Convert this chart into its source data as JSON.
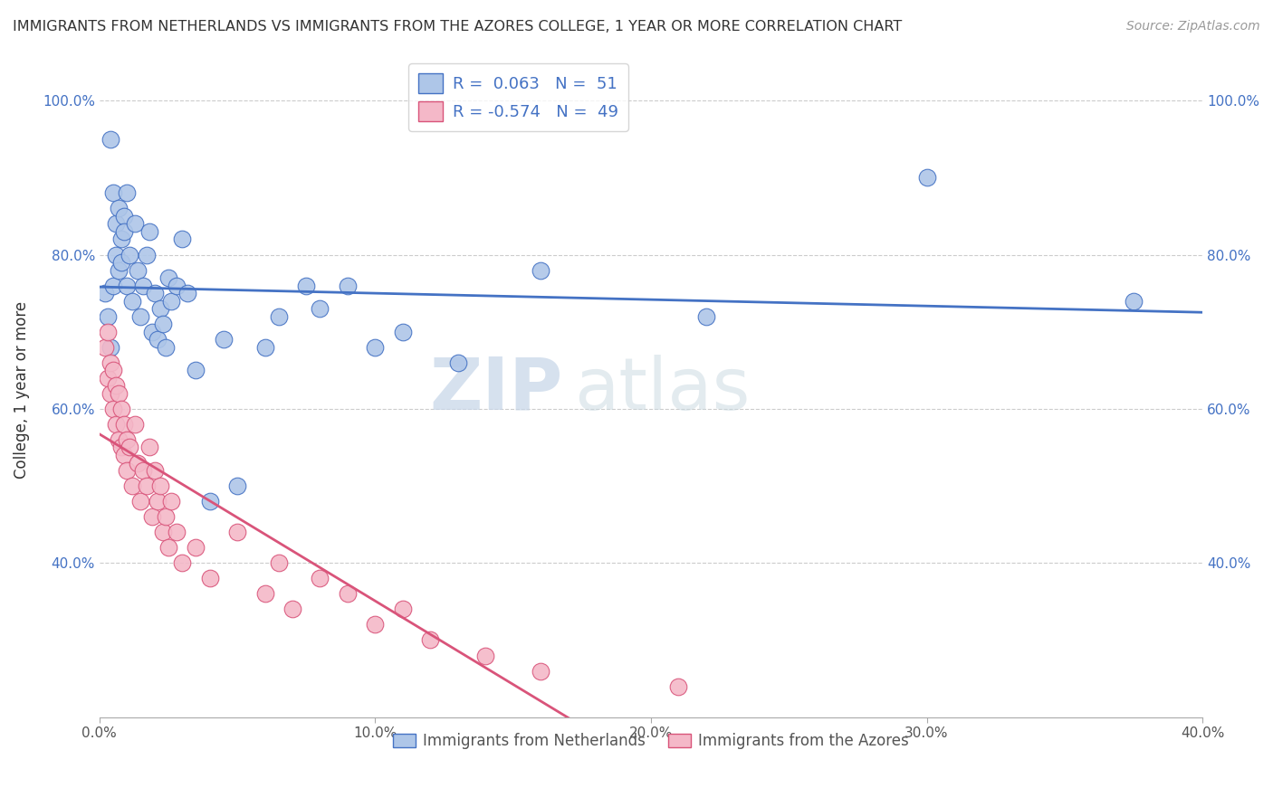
{
  "title": "IMMIGRANTS FROM NETHERLANDS VS IMMIGRANTS FROM THE AZORES COLLEGE, 1 YEAR OR MORE CORRELATION CHART",
  "source": "Source: ZipAtlas.com",
  "ylabel": "College, 1 year or more",
  "watermark_zip": "ZIP",
  "watermark_atlas": "atlas",
  "xlim": [
    0.0,
    0.4
  ],
  "ylim": [
    0.2,
    1.05
  ],
  "xticks": [
    0.0,
    0.1,
    0.2,
    0.3,
    0.4
  ],
  "xticklabels": [
    "0.0%",
    "10.0%",
    "20.0%",
    "30.0%",
    "40.0%"
  ],
  "yticks": [
    0.4,
    0.6,
    0.8,
    1.0
  ],
  "yticklabels": [
    "40.0%",
    "60.0%",
    "80.0%",
    "100.0%"
  ],
  "netherlands_color": "#aec6e8",
  "azores_color": "#f4b8c8",
  "netherlands_line_color": "#4472c4",
  "azores_line_color": "#d9547a",
  "legend_text_blue": "R =  0.063   N =  51",
  "legend_text_pink": "R = -0.574   N =  49",
  "legend_label_netherlands": "Immigrants from Netherlands",
  "legend_label_azores": "Immigrants from the Azores",
  "netherlands_x": [
    0.002,
    0.003,
    0.004,
    0.004,
    0.005,
    0.005,
    0.006,
    0.006,
    0.007,
    0.007,
    0.008,
    0.008,
    0.009,
    0.009,
    0.01,
    0.01,
    0.011,
    0.012,
    0.013,
    0.014,
    0.015,
    0.016,
    0.017,
    0.018,
    0.019,
    0.02,
    0.021,
    0.022,
    0.023,
    0.024,
    0.025,
    0.026,
    0.028,
    0.03,
    0.032,
    0.035,
    0.04,
    0.045,
    0.05,
    0.06,
    0.065,
    0.075,
    0.08,
    0.09,
    0.1,
    0.11,
    0.13,
    0.16,
    0.22,
    0.3,
    0.375
  ],
  "netherlands_y": [
    0.75,
    0.72,
    0.95,
    0.68,
    0.88,
    0.76,
    0.84,
    0.8,
    0.86,
    0.78,
    0.82,
    0.79,
    0.85,
    0.83,
    0.88,
    0.76,
    0.8,
    0.74,
    0.84,
    0.78,
    0.72,
    0.76,
    0.8,
    0.83,
    0.7,
    0.75,
    0.69,
    0.73,
    0.71,
    0.68,
    0.77,
    0.74,
    0.76,
    0.82,
    0.75,
    0.65,
    0.48,
    0.69,
    0.5,
    0.68,
    0.72,
    0.76,
    0.73,
    0.76,
    0.68,
    0.7,
    0.66,
    0.78,
    0.72,
    0.9,
    0.74
  ],
  "azores_x": [
    0.002,
    0.003,
    0.003,
    0.004,
    0.004,
    0.005,
    0.005,
    0.006,
    0.006,
    0.007,
    0.007,
    0.008,
    0.008,
    0.009,
    0.009,
    0.01,
    0.01,
    0.011,
    0.012,
    0.013,
    0.014,
    0.015,
    0.016,
    0.017,
    0.018,
    0.019,
    0.02,
    0.021,
    0.022,
    0.023,
    0.024,
    0.025,
    0.026,
    0.028,
    0.03,
    0.035,
    0.04,
    0.05,
    0.06,
    0.065,
    0.07,
    0.08,
    0.09,
    0.1,
    0.11,
    0.12,
    0.14,
    0.16,
    0.21
  ],
  "azores_y": [
    0.68,
    0.64,
    0.7,
    0.62,
    0.66,
    0.6,
    0.65,
    0.58,
    0.63,
    0.56,
    0.62,
    0.55,
    0.6,
    0.58,
    0.54,
    0.56,
    0.52,
    0.55,
    0.5,
    0.58,
    0.53,
    0.48,
    0.52,
    0.5,
    0.55,
    0.46,
    0.52,
    0.48,
    0.5,
    0.44,
    0.46,
    0.42,
    0.48,
    0.44,
    0.4,
    0.42,
    0.38,
    0.44,
    0.36,
    0.4,
    0.34,
    0.38,
    0.36,
    0.32,
    0.34,
    0.3,
    0.28,
    0.26,
    0.24
  ]
}
